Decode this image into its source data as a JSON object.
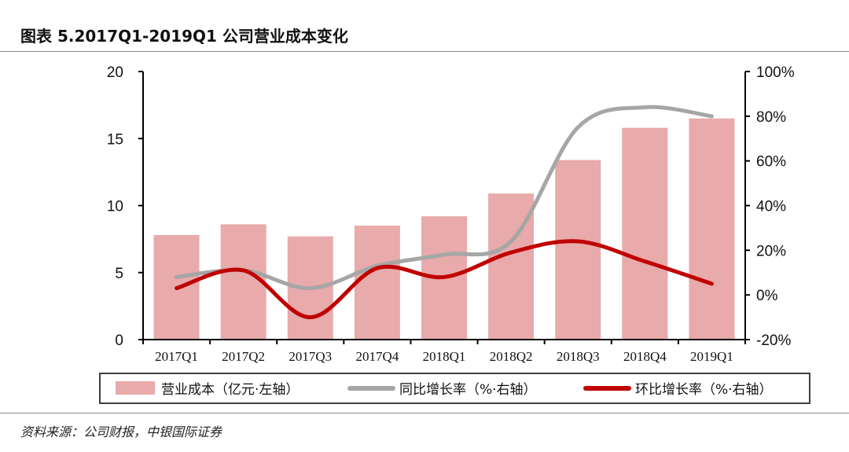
{
  "title": "图表 5.2017Q1-2019Q1 公司营业成本变化",
  "source": "资料来源：公司财报，中银国际证券",
  "chart_data": {
    "type": "bar+line",
    "categories": [
      "2017Q1",
      "2017Q2",
      "2017Q3",
      "2017Q4",
      "2018Q1",
      "2018Q2",
      "2018Q3",
      "2018Q4",
      "2019Q1"
    ],
    "left_axis": {
      "ylim": [
        0,
        20
      ],
      "ticks": [
        "0",
        "5",
        "10",
        "15",
        "20"
      ]
    },
    "right_axis": {
      "ylim": [
        -20,
        100
      ],
      "ticks": [
        "-20%",
        "0%",
        "20%",
        "40%",
        "60%",
        "80%",
        "100%"
      ]
    },
    "series": [
      {
        "name": "营业成本（亿元·左轴）",
        "type": "bar",
        "axis": "left",
        "color": "#E8AAAA",
        "values": [
          7.8,
          8.6,
          7.7,
          8.5,
          9.2,
          10.9,
          13.4,
          15.8,
          16.5
        ]
      },
      {
        "name": "同比增长率（%·右轴）",
        "type": "line",
        "axis": "right",
        "color": "#A6A6A6",
        "values": [
          8,
          11,
          3,
          13,
          18,
          24,
          75,
          84,
          80
        ]
      },
      {
        "name": "环比增长率（%·右轴）",
        "type": "line",
        "axis": "right",
        "color": "#C00000",
        "values": [
          3,
          11,
          -10,
          12,
          8,
          19,
          24,
          15,
          5
        ]
      }
    ],
    "legend": "bottom",
    "grid": false
  }
}
